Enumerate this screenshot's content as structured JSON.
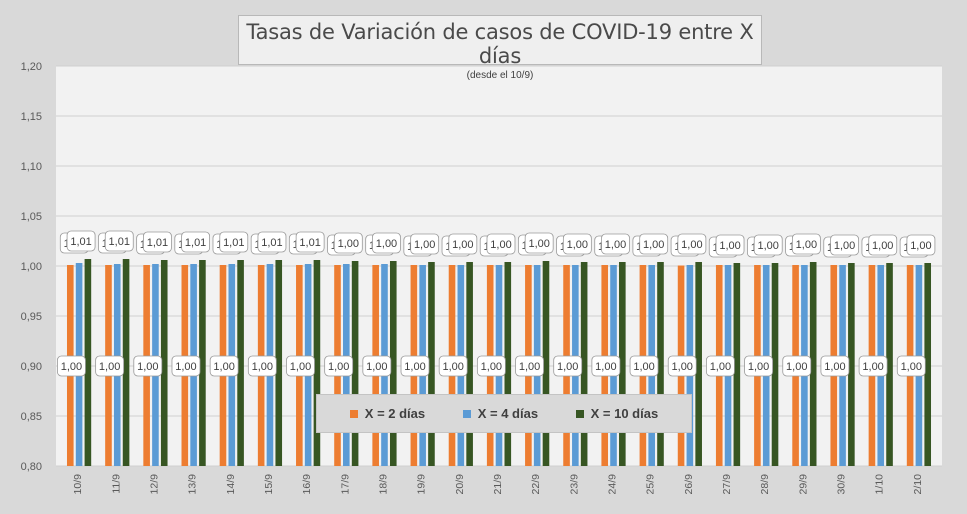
{
  "chart_data": {
    "type": "bar",
    "title": "Tasas de Variación de casos de COVID-19 entre X días",
    "subtitle": "(desde el 10/9)",
    "ylim": [
      0.8,
      1.2
    ],
    "yticks": [
      "0,80",
      "0,85",
      "0,90",
      "0,95",
      "1,00",
      "1,05",
      "1,10",
      "1,15",
      "1,20"
    ],
    "categories": [
      "10/9",
      "11/9",
      "12/9",
      "13/9",
      "14/9",
      "15/9",
      "16/9",
      "17/9",
      "18/9",
      "19/9",
      "20/9",
      "21/9",
      "22/9",
      "23/9",
      "24/9",
      "25/9",
      "26/9",
      "27/9",
      "28/9",
      "29/9",
      "30/9",
      "1/10",
      "2/10"
    ],
    "series": [
      {
        "name": "X = 2 días",
        "color": "#ed7d31",
        "values": [
          1.001,
          1.001,
          1.001,
          1.001,
          1.001,
          1.001,
          1.001,
          1.001,
          1.001,
          1.001,
          1.001,
          1.001,
          1.001,
          1.001,
          1.001,
          1.001,
          1.0005,
          1.001,
          1.001,
          1.001,
          1.001,
          1.001,
          1.001
        ],
        "labels": [
          "1,00",
          "1,00",
          "1,00",
          "1,00",
          "1,00",
          "1,00",
          "1,00",
          "1,00",
          "1,00",
          "1,00",
          "1,00",
          "1,00",
          "1,00",
          "1,00",
          "1,00",
          "1,00",
          "1,00",
          "1,00",
          "1,00",
          "1,00",
          "1,00",
          "1,00",
          "1,00"
        ]
      },
      {
        "name": "X = 4 días",
        "color": "#5b9bd5",
        "values": [
          1.003,
          1.002,
          1.002,
          1.002,
          1.002,
          1.002,
          1.002,
          1.002,
          1.002,
          1.001,
          1.001,
          1.001,
          1.001,
          1.001,
          1.001,
          1.001,
          1.001,
          1.001,
          1.001,
          1.001,
          1.001,
          1.001,
          1.001
        ],
        "labels": [
          "1,00",
          "1,00",
          "1,00",
          "1,00",
          "1,00",
          "1,00",
          "1,00",
          "1,00",
          "1,00",
          "1,00",
          "1,00",
          "1,00",
          "1,00",
          "1,00",
          "1,00",
          "1,00",
          "1,00",
          "1,00",
          "1,00",
          "1,00",
          "1,00",
          "1,00",
          "1,00"
        ]
      },
      {
        "name": "X = 10 días",
        "color": "#375623",
        "values": [
          1.007,
          1.007,
          1.006,
          1.006,
          1.006,
          1.006,
          1.006,
          1.005,
          1.005,
          1.004,
          1.004,
          1.004,
          1.005,
          1.004,
          1.004,
          1.004,
          1.004,
          1.003,
          1.003,
          1.004,
          1.003,
          1.003,
          1.003
        ],
        "labels": [
          "1,01",
          "1,01",
          "1,01",
          "1,01",
          "1,01",
          "1,01",
          "1,01",
          "1,00",
          "1,00",
          "1,00",
          "1,00",
          "1,00",
          "1,00",
          "1,00",
          "1,00",
          "1,00",
          "1,00",
          "1,00",
          "1,00",
          "1,00",
          "1,00",
          "1,00",
          "1,00"
        ]
      }
    ],
    "grid": true,
    "legend": "bottom-center"
  }
}
